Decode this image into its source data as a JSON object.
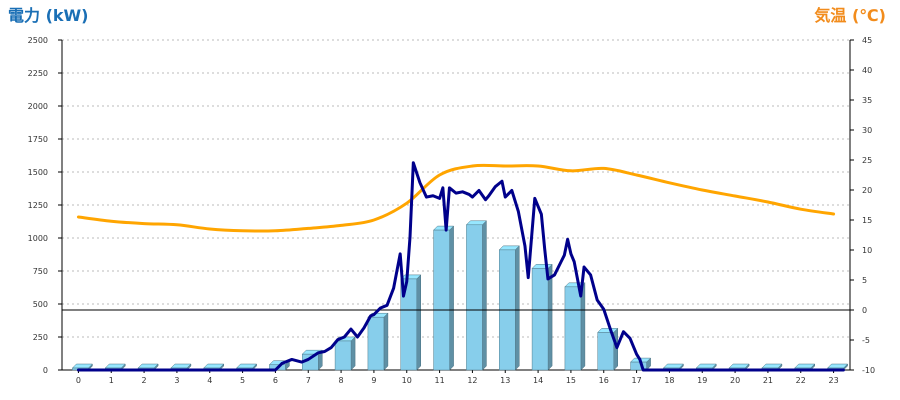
{
  "chart_data": {
    "type": "bar+line",
    "left_axis_title": "電力 (kW)",
    "right_axis_title": "気温 (℃)",
    "y_left": {
      "range": [
        0,
        2500
      ],
      "ticks": [
        0,
        250,
        500,
        750,
        1000,
        1250,
        1500,
        1750,
        2000,
        2250,
        2500
      ]
    },
    "y_right": {
      "range": [
        -10,
        45
      ],
      "ticks": [
        -10,
        -5,
        0,
        5,
        10,
        15,
        20,
        25,
        30,
        35,
        40,
        45
      ]
    },
    "x_categories": [
      "0",
      "1",
      "2",
      "3",
      "4",
      "5",
      "6",
      "7",
      "8",
      "9",
      "10",
      "11",
      "12",
      "13",
      "14",
      "15",
      "16",
      "17",
      "18",
      "19",
      "20",
      "21",
      "22",
      "23"
    ],
    "grid": "horizontal dotted",
    "colors": {
      "bar": "#87ceeb",
      "power_line": "#00008b",
      "temperature_line": "#ffa500",
      "zero_line": "#000000"
    },
    "bars_hourly_power_kw": [
      15,
      15,
      15,
      15,
      15,
      15,
      40,
      120,
      220,
      400,
      690,
      1060,
      1100,
      910,
      770,
      630,
      285,
      60,
      15,
      15,
      15,
      15,
      15,
      15
    ],
    "power_line": {
      "x": [
        0,
        6,
        6.2,
        6.5,
        6.8,
        7.0,
        7.3,
        7.5,
        7.7,
        7.9,
        8.1,
        8.3,
        8.5,
        8.7,
        8.9,
        9.0,
        9.2,
        9.4,
        9.6,
        9.7,
        9.8,
        9.9,
        10.0,
        10.1,
        10.2,
        10.4,
        10.6,
        10.8,
        11.0,
        11.1,
        11.2,
        11.3,
        11.5,
        11.7,
        11.9,
        12.0,
        12.2,
        12.4,
        12.5,
        12.7,
        12.9,
        13.0,
        13.2,
        13.4,
        13.6,
        13.7,
        13.9,
        14.1,
        14.2,
        14.3,
        14.5,
        14.7,
        14.8,
        14.9,
        15.0,
        15.1,
        15.3,
        15.4,
        15.6,
        15.8,
        16.0,
        16.2,
        16.4,
        16.6,
        16.8,
        17.0,
        17.1,
        17.2,
        23.3
      ],
      "y": [
        0,
        0,
        50,
        80,
        60,
        80,
        130,
        140,
        170,
        230,
        250,
        310,
        250,
        320,
        410,
        420,
        470,
        490,
        620,
        750,
        880,
        560,
        670,
        1010,
        1570,
        1420,
        1310,
        1320,
        1300,
        1380,
        1060,
        1380,
        1340,
        1350,
        1330,
        1310,
        1360,
        1290,
        1320,
        1390,
        1430,
        1310,
        1360,
        1200,
        940,
        700,
        1300,
        1180,
        920,
        690,
        720,
        820,
        870,
        990,
        880,
        820,
        560,
        780,
        720,
        530,
        460,
        310,
        170,
        290,
        240,
        120,
        80,
        0,
        0
      ]
    },
    "temperature_line": {
      "x": [
        0,
        1,
        2,
        3,
        4,
        5,
        6,
        7,
        8,
        9,
        10,
        11,
        12,
        13,
        14,
        15,
        16,
        17,
        18,
        19,
        20,
        21,
        22,
        23
      ],
      "y": [
        15.5,
        14.8,
        14.4,
        14.2,
        13.5,
        13.2,
        13.2,
        13.6,
        14.1,
        15.0,
        17.8,
        22.5,
        24.0,
        24.0,
        24.0,
        23.2,
        23.6,
        22.5,
        21.2,
        20.0,
        19.0,
        18.0,
        16.8,
        16.0
      ]
    }
  }
}
